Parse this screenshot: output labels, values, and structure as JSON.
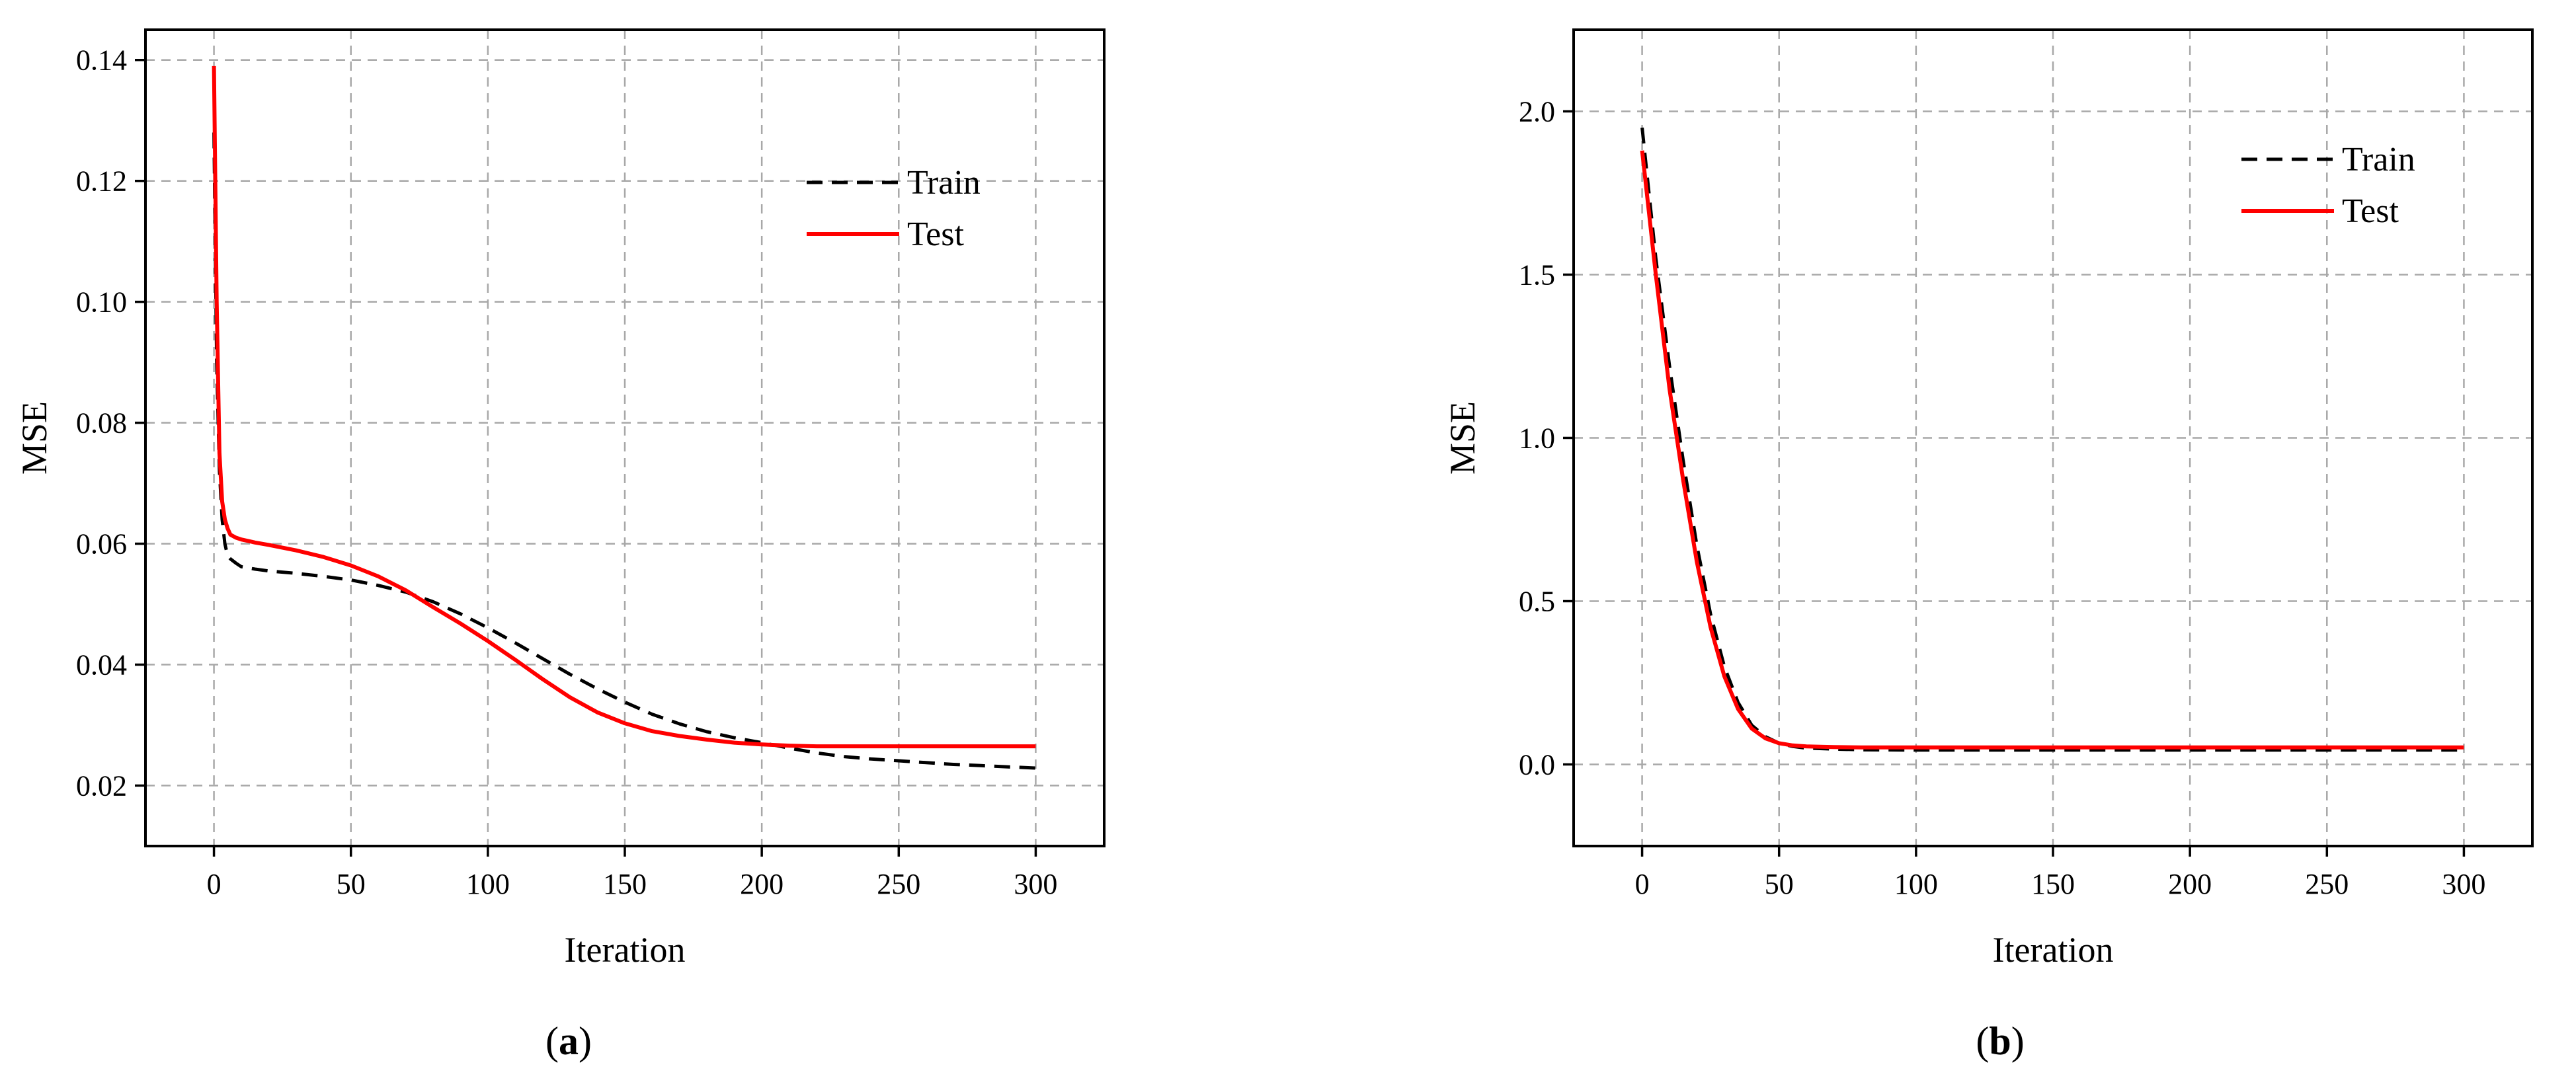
{
  "chart_data": [
    {
      "type": "line",
      "caption_letter": "a",
      "xlabel": "Iteration",
      "ylabel": "MSE",
      "xlim": [
        -25,
        325
      ],
      "ylim": [
        0.01,
        0.145
      ],
      "xticks": [
        0,
        50,
        100,
        150,
        200,
        250,
        300
      ],
      "yticks": [
        0.02,
        0.04,
        0.06,
        0.08,
        0.1,
        0.12,
        0.14
      ],
      "ytick_labels": [
        "0.02",
        "0.04",
        "0.06",
        "0.08",
        "0.10",
        "0.12",
        "0.14"
      ],
      "grid": true,
      "legend_position": "top-right",
      "series": [
        {
          "name": "Train",
          "color": "#000000",
          "style": "dashed",
          "x": [
            0,
            1,
            2,
            3,
            4,
            5,
            6,
            8,
            10,
            15,
            20,
            30,
            40,
            50,
            60,
            70,
            80,
            90,
            100,
            110,
            120,
            130,
            140,
            150,
            160,
            170,
            180,
            190,
            200,
            210,
            220,
            230,
            240,
            250,
            260,
            270,
            280,
            290,
            300
          ],
          "y": [
            0.128,
            0.09,
            0.072,
            0.064,
            0.06,
            0.058,
            0.0575,
            0.0568,
            0.0562,
            0.0558,
            0.0555,
            0.0551,
            0.0546,
            0.054,
            0.0531,
            0.052,
            0.0504,
            0.0484,
            0.0461,
            0.0436,
            0.041,
            0.0384,
            0.036,
            0.0338,
            0.0318,
            0.0302,
            0.0289,
            0.0279,
            0.0271,
            0.0262,
            0.0254,
            0.0248,
            0.0244,
            0.0241,
            0.0238,
            0.0235,
            0.0233,
            0.0231,
            0.0229
          ]
        },
        {
          "name": "Test",
          "color": "#ff0000",
          "style": "solid",
          "x": [
            0,
            1,
            2,
            3,
            4,
            5,
            6,
            8,
            10,
            15,
            20,
            30,
            40,
            50,
            60,
            70,
            80,
            90,
            100,
            110,
            120,
            130,
            140,
            150,
            160,
            170,
            180,
            190,
            200,
            210,
            220,
            230,
            240,
            250,
            260,
            270,
            280,
            290,
            300
          ],
          "y": [
            0.139,
            0.1,
            0.075,
            0.067,
            0.064,
            0.0625,
            0.0615,
            0.061,
            0.0607,
            0.0602,
            0.0598,
            0.0589,
            0.0578,
            0.0564,
            0.0546,
            0.0523,
            0.0495,
            0.0468,
            0.0439,
            0.0408,
            0.0376,
            0.0346,
            0.0321,
            0.0303,
            0.029,
            0.0282,
            0.0276,
            0.0271,
            0.0268,
            0.0266,
            0.0265,
            0.0265,
            0.0265,
            0.0265,
            0.0265,
            0.0265,
            0.0265,
            0.0265,
            0.0265
          ]
        }
      ]
    },
    {
      "type": "line",
      "caption_letter": "b",
      "xlabel": "Iteration",
      "ylabel": "MSE",
      "xlim": [
        -25,
        325
      ],
      "ylim": [
        -0.25,
        2.25
      ],
      "xticks": [
        0,
        50,
        100,
        150,
        200,
        250,
        300
      ],
      "yticks": [
        0.0,
        0.5,
        1.0,
        1.5,
        2.0
      ],
      "ytick_labels": [
        "0.0",
        "0.5",
        "1.0",
        "1.5",
        "2.0"
      ],
      "grid": true,
      "legend_position": "top-right",
      "series": [
        {
          "name": "Train",
          "color": "#000000",
          "style": "dashed",
          "x": [
            0,
            5,
            10,
            15,
            20,
            25,
            30,
            35,
            40,
            45,
            50,
            55,
            60,
            70,
            80,
            100,
            150,
            200,
            250,
            300
          ],
          "y": [
            1.95,
            1.55,
            1.22,
            0.93,
            0.67,
            0.46,
            0.3,
            0.19,
            0.12,
            0.085,
            0.065,
            0.055,
            0.05,
            0.047,
            0.045,
            0.044,
            0.044,
            0.044,
            0.044,
            0.044
          ]
        },
        {
          "name": "Test",
          "color": "#ff0000",
          "style": "solid",
          "x": [
            0,
            5,
            10,
            15,
            20,
            25,
            30,
            35,
            40,
            45,
            50,
            55,
            60,
            70,
            80,
            100,
            150,
            200,
            250,
            300
          ],
          "y": [
            1.88,
            1.5,
            1.15,
            0.87,
            0.62,
            0.42,
            0.27,
            0.17,
            0.11,
            0.08,
            0.065,
            0.058,
            0.055,
            0.053,
            0.052,
            0.052,
            0.052,
            0.052,
            0.052,
            0.052
          ]
        }
      ]
    }
  ]
}
